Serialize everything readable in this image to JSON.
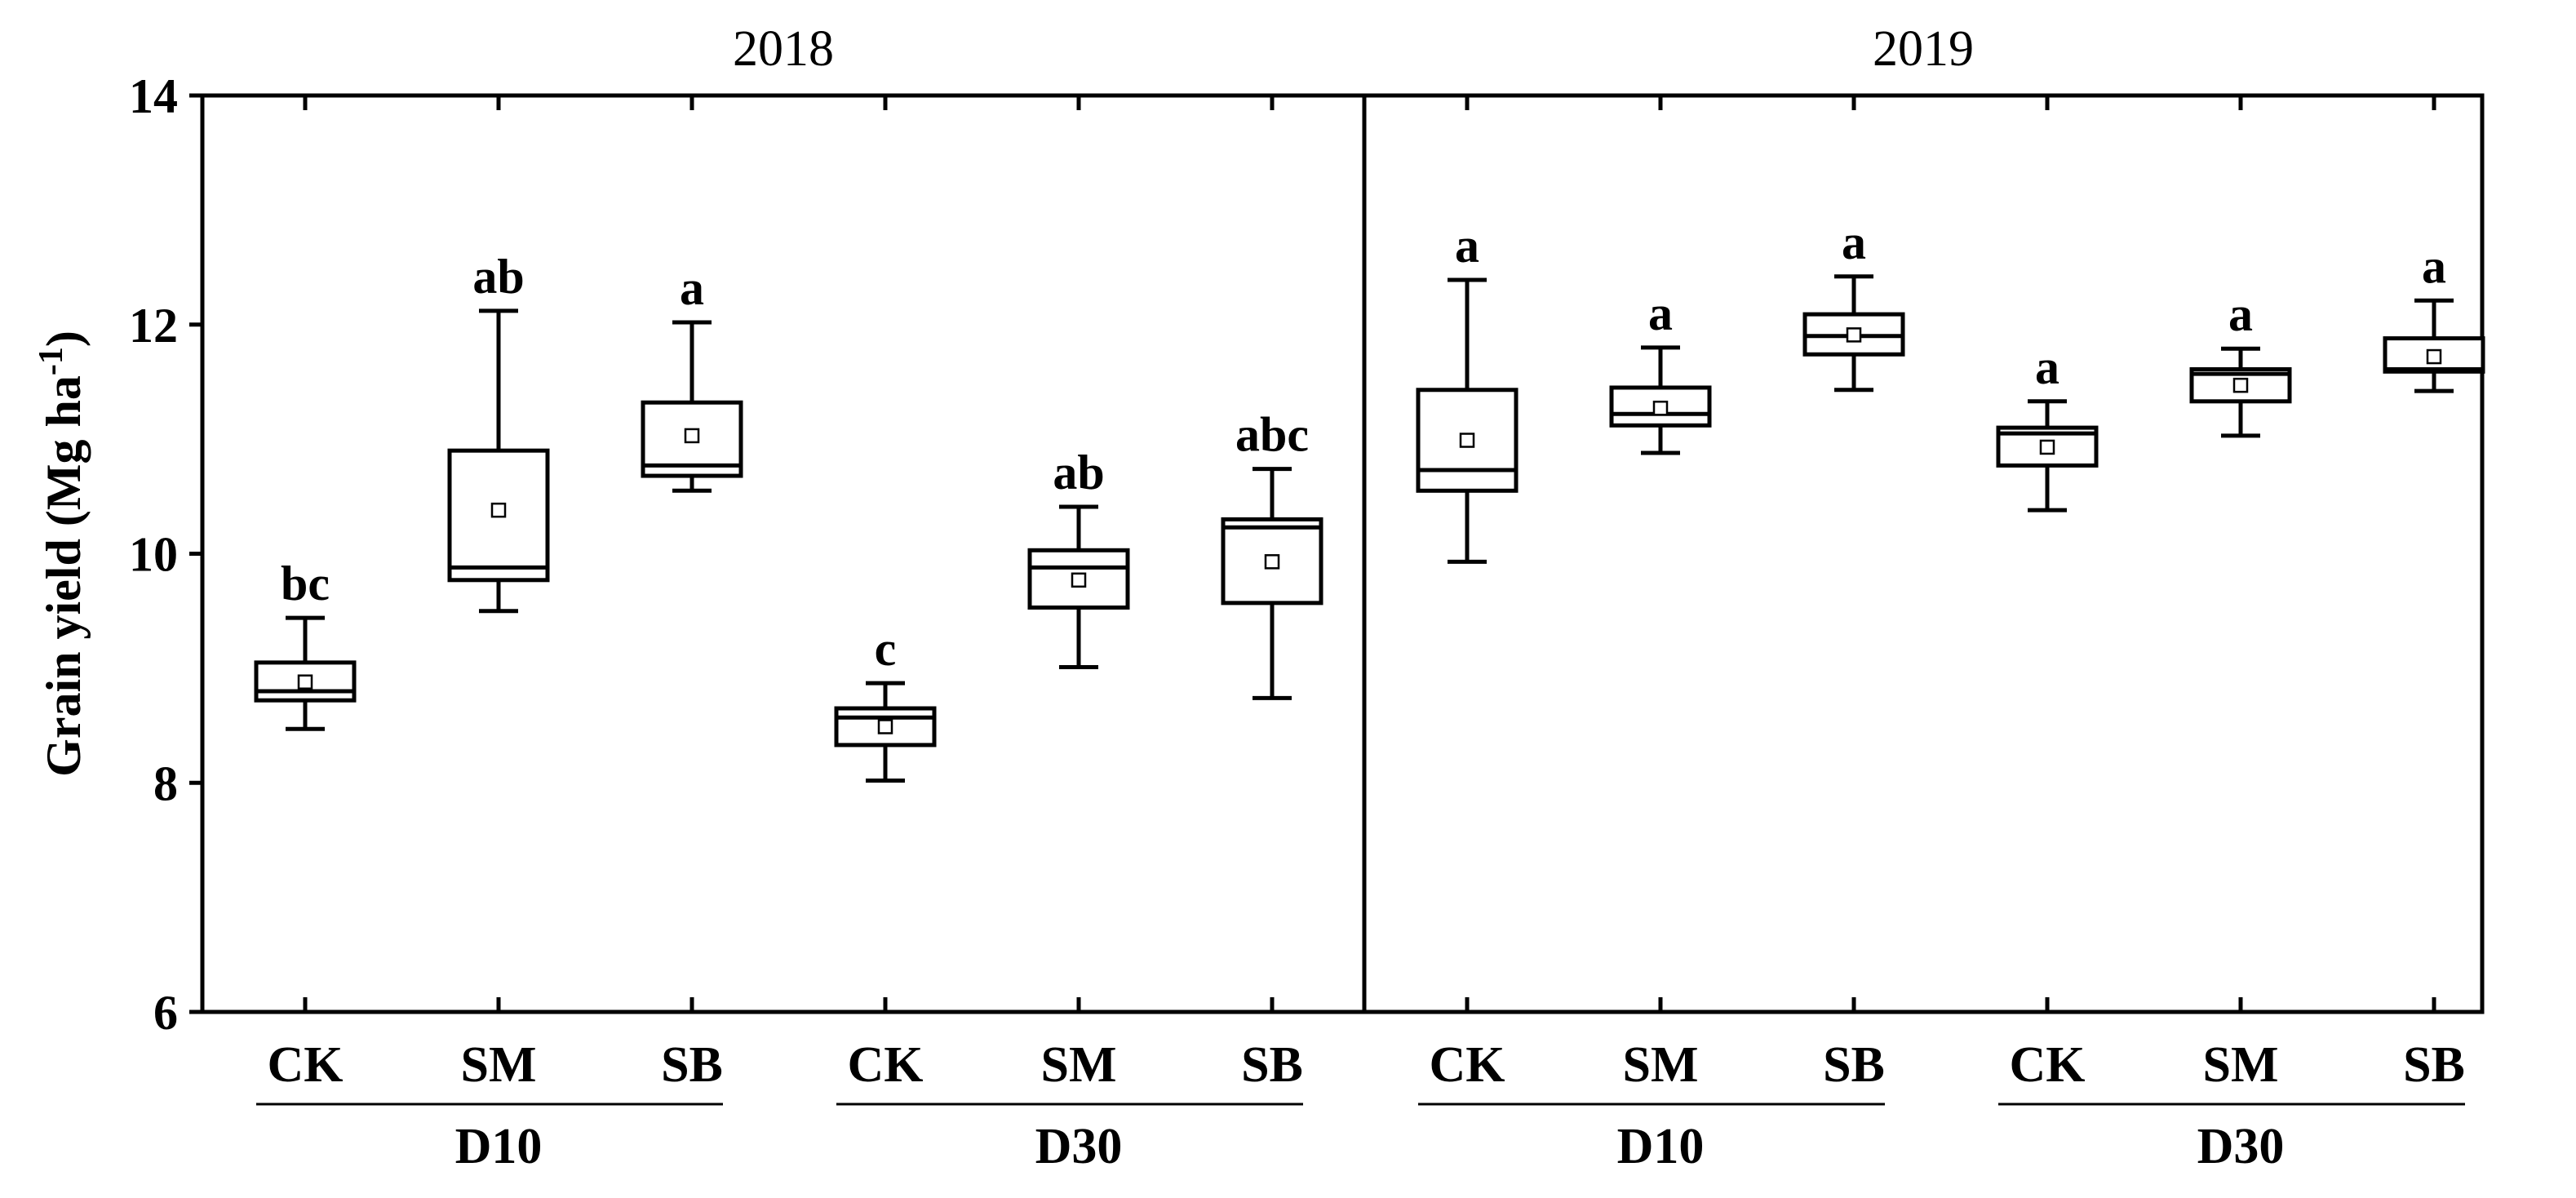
{
  "chart_data": {
    "type": "boxplot",
    "ylabel": "Grain yield (Mg ha",
    "ylabel_sup": "-1",
    "ylabel_close": ")",
    "ylim": [
      6,
      14
    ],
    "yticks": [
      6,
      8,
      10,
      12,
      14
    ],
    "categories": [
      "CK",
      "SM",
      "SB",
      "CK",
      "SM",
      "SB"
    ],
    "group_labels": [
      "D10",
      "D30"
    ],
    "panels": [
      {
        "title": "2018",
        "boxes": [
          {
            "group": "D10",
            "treatment": "CK",
            "min": 8.47,
            "q1": 8.72,
            "median": 8.8,
            "q3": 9.05,
            "max": 9.44,
            "mean": 8.88,
            "sig": "bc"
          },
          {
            "group": "D10",
            "treatment": "SM",
            "min": 9.5,
            "q1": 9.77,
            "median": 9.88,
            "q3": 10.9,
            "max": 12.12,
            "mean": 10.38,
            "sig": "ab"
          },
          {
            "group": "D10",
            "treatment": "SB",
            "min": 10.55,
            "q1": 10.68,
            "median": 10.77,
            "q3": 11.32,
            "max": 12.02,
            "mean": 11.03,
            "sig": "a"
          },
          {
            "group": "D30",
            "treatment": "CK",
            "min": 8.02,
            "q1": 8.33,
            "median": 8.57,
            "q3": 8.65,
            "max": 8.87,
            "mean": 8.49,
            "sig": "c"
          },
          {
            "group": "D30",
            "treatment": "SM",
            "min": 9.01,
            "q1": 9.53,
            "median": 9.88,
            "q3": 10.03,
            "max": 10.41,
            "mean": 9.77,
            "sig": "ab"
          },
          {
            "group": "D30",
            "treatment": "SB",
            "min": 8.74,
            "q1": 9.57,
            "median": 10.23,
            "q3": 10.3,
            "max": 10.74,
            "mean": 9.93,
            "sig": "abc"
          }
        ]
      },
      {
        "title": "2019",
        "boxes": [
          {
            "group": "D10",
            "treatment": "CK",
            "min": 9.93,
            "q1": 10.55,
            "median": 10.73,
            "q3": 11.43,
            "max": 12.39,
            "mean": 10.99,
            "sig": "a"
          },
          {
            "group": "D10",
            "treatment": "SM",
            "min": 10.88,
            "q1": 11.12,
            "median": 11.22,
            "q3": 11.45,
            "max": 11.8,
            "mean": 11.27,
            "sig": "a"
          },
          {
            "group": "D10",
            "treatment": "SB",
            "min": 11.43,
            "q1": 11.74,
            "median": 11.9,
            "q3": 12.09,
            "max": 12.42,
            "mean": 11.91,
            "sig": "a"
          },
          {
            "group": "D30",
            "treatment": "CK",
            "min": 10.38,
            "q1": 10.77,
            "median": 11.05,
            "q3": 11.1,
            "max": 11.33,
            "mean": 10.93,
            "sig": "a"
          },
          {
            "group": "D30",
            "treatment": "SM",
            "min": 11.03,
            "q1": 11.33,
            "median": 11.57,
            "q3": 11.61,
            "max": 11.79,
            "mean": 11.47,
            "sig": "a"
          },
          {
            "group": "D30",
            "treatment": "SB",
            "min": 11.42,
            "q1": 11.59,
            "median": 11.61,
            "q3": 11.88,
            "max": 12.21,
            "mean": 11.72,
            "sig": "a"
          }
        ]
      }
    ]
  }
}
